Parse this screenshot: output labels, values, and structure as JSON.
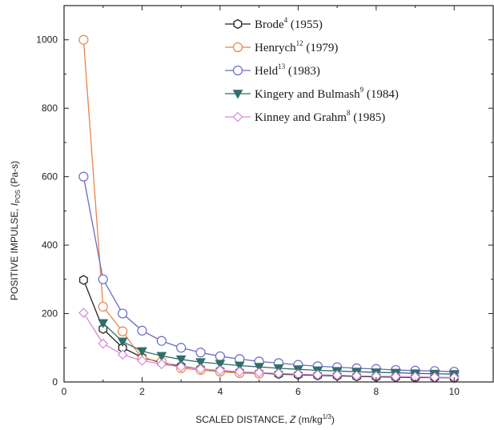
{
  "chart_data": {
    "type": "line",
    "xlabel": {
      "prefix": "SCALED DISTANCE, ",
      "symbol": "Z",
      "unit_base": " (m/kg",
      "unit_exp": "1/3",
      "unit_end": ")"
    },
    "ylabel": {
      "prefix": "POSITIVE IMPULSE, ",
      "symbol": "I",
      "subscript": "POS",
      "unit": " (Pa-s)"
    },
    "xlim": [
      0,
      11
    ],
    "ylim": [
      0,
      1100
    ],
    "xticks": [
      0,
      2,
      4,
      6,
      8,
      10
    ],
    "yticks": [
      0,
      200,
      400,
      600,
      800,
      1000
    ],
    "grid": false,
    "legend_position": "top-right",
    "series": [
      {
        "name": "Brode",
        "ref": "4",
        "year": "(1955)",
        "color": "#222222",
        "marker": "hexagon-open",
        "x": [
          0.5,
          1,
          1.5,
          2,
          2.5,
          3,
          3.5,
          4,
          4.5,
          5,
          5.5,
          6,
          6.5,
          7,
          7.5,
          8,
          8.5,
          9,
          9.5,
          10
        ],
        "y": [
          298,
          155,
          100,
          72,
          56,
          46,
          38,
          33,
          29,
          26,
          23,
          21,
          19,
          18,
          16,
          15,
          14,
          13,
          13,
          12
        ]
      },
      {
        "name": "Henrych",
        "ref": "12",
        "year": "(1979)",
        "color": "#e8834a",
        "marker": "circle-open",
        "x": [
          0.5,
          1,
          1.5,
          2,
          2.5,
          3,
          3.5,
          4,
          4.5,
          5
        ],
        "y": [
          1000,
          220,
          148,
          68,
          60,
          40,
          35,
          30,
          26,
          24
        ]
      },
      {
        "name": "Held",
        "ref": "13",
        "year": "(1983)",
        "color": "#6a6ac8",
        "marker": "circle-open",
        "x": [
          0.5,
          1,
          1.5,
          2,
          2.5,
          3,
          3.5,
          4,
          4.5,
          5,
          5.5,
          6,
          6.5,
          7,
          7.5,
          8,
          8.5,
          9,
          9.5,
          10
        ],
        "y": [
          600,
          300,
          200,
          150,
          120,
          100,
          86,
          75,
          67,
          60,
          55,
          50,
          46,
          43,
          40,
          38,
          35,
          33,
          32,
          30
        ]
      },
      {
        "name": "Kingery and Bulmash",
        "ref": "9",
        "year": "(1984)",
        "color": "#2e6f6a",
        "marker": "triangle-down-filled",
        "x": [
          1,
          1.5,
          2,
          2.5,
          3,
          3.5,
          4,
          4.5,
          5,
          5.5,
          6,
          6.5,
          7,
          7.5,
          8,
          8.5,
          9,
          9.5,
          10
        ],
        "y": [
          172,
          118,
          90,
          76,
          66,
          58,
          53,
          48,
          44,
          40,
          37,
          34,
          32,
          30,
          28,
          27,
          25,
          24,
          23
        ]
      },
      {
        "name": "Kinney and Grahm",
        "ref": "8",
        "year": "(1985)",
        "color": "#d58ad8",
        "marker": "diamond-open",
        "x": [
          0.5,
          1,
          1.5,
          2,
          2.5,
          3,
          3.5,
          4,
          4.5,
          5,
          5.5,
          6,
          6.5,
          7,
          7.5,
          8,
          8.5,
          9,
          9.5,
          10
        ],
        "y": [
          202,
          112,
          80,
          62,
          52,
          44,
          38,
          34,
          30,
          27,
          25,
          23,
          21,
          20,
          18,
          17,
          16,
          15,
          14,
          13
        ]
      }
    ]
  }
}
